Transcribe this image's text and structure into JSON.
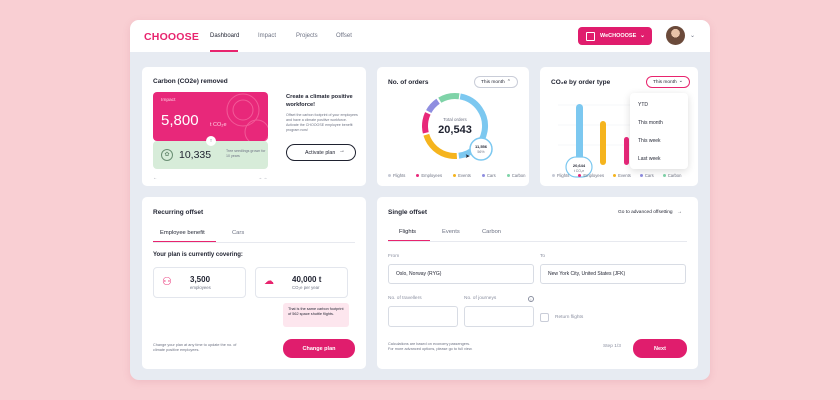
{
  "brand": {
    "logo": "CHOOOSE"
  },
  "nav": [
    {
      "label": "Dashboard"
    },
    {
      "label": "Impact"
    },
    {
      "label": "Projects"
    },
    {
      "label": "Offset"
    }
  ],
  "org_button": {
    "label": "WeCHOOOSE"
  },
  "carbon_card": {
    "title": "Carbon (CO2e) removed",
    "impact_label": "Impact",
    "impact_value": "5,800",
    "impact_unit": "t CO₂e",
    "seedlings_value": "10,335",
    "seedlings_text": "Tree seedlings grown for 10 years",
    "cta_title": "Create a climate positive workforce!",
    "cta_body": "Offset the carbon footprint of your employees and have a climate positive workforce. Activate the CHOOOSE employee benefit program now!",
    "cta_button": "Activate plan"
  },
  "orders_card": {
    "title": "No. of orders",
    "period": "This month",
    "center_label": "Total orders",
    "center_value": "20,543",
    "tooltip_value": "11,556",
    "tooltip_pct": "56%",
    "legend": [
      "Flights",
      "Employees",
      "Events",
      "Cars",
      "Carbon"
    ]
  },
  "order_type_card": {
    "title": "CO₂e by order type",
    "period": "This month",
    "menu": [
      "YTD",
      "This month",
      "This week",
      "Last week"
    ],
    "tooltip_value": "20,644",
    "tooltip_unit": "t CO₂e",
    "legend": [
      "Flights",
      "Employees",
      "Events",
      "Cars",
      "Carbon"
    ]
  },
  "recurring_card": {
    "title": "Recurring offset",
    "tabs": [
      "Employee benefit",
      "Cars"
    ],
    "covering_title": "Your plan is currently covering:",
    "employees_value": "3,500",
    "employees_label": "employees",
    "co2_value": "40,000 t",
    "co2_label": "CO₂e per year",
    "note": "That is the same carbon footprint of 562 space shuttle flights.",
    "footer_text": "Change your plan at any time to update the no. of climate positive employees.",
    "button": "Change plan"
  },
  "single_card": {
    "title": "Single offset",
    "advanced_link": "Go to advanced offsetting",
    "tabs": [
      "Flights",
      "Events",
      "Carbon"
    ],
    "from_label": "From",
    "from_value": "Oslo, Norway (RYG)",
    "to_label": "To",
    "to_value": "New York City, United States (JFK)",
    "travellers_label": "No. of travellers",
    "journeys_label": "No. of journeys",
    "return_label": "Return flights",
    "footer_text_1": "Calculations are based on economy passengers.",
    "footer_text_2": "For more advanced options, please go to full view.",
    "step": "Step 1/3",
    "next_button": "Next"
  },
  "colors": {
    "accent": "#e01d6d",
    "blue": "#7cc8f0",
    "yellow": "#f5b41e",
    "green": "#7fd3a8",
    "purple": "#8f8ee0",
    "grey": "#c7cbd6"
  }
}
